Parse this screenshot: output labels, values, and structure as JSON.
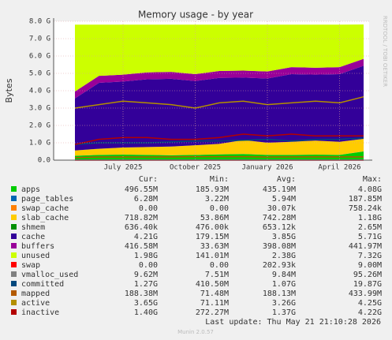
{
  "chart_data": {
    "type": "area",
    "title": "Memory usage - by year",
    "y_label": "Bytes",
    "side_label": "RRDTOOL / TOBI OETIKER",
    "x": [
      "2025-05",
      "2025-06",
      "2025-07",
      "2025-08",
      "2025-09",
      "2025-10",
      "2025-11",
      "2025-12",
      "2026-01",
      "2026-02",
      "2026-03",
      "2026-04",
      "2026-05"
    ],
    "xticks": [
      {
        "value": "2025-07",
        "label": "July 2025"
      },
      {
        "value": "2025-10",
        "label": "October 2025"
      },
      {
        "value": "2026-01",
        "label": "January 2026"
      },
      {
        "value": "2026-04",
        "label": "April 2026"
      }
    ],
    "ylim": [
      0,
      8
    ],
    "yticks": [
      {
        "value": 0,
        "label": "0.0"
      },
      {
        "value": 1,
        "label": "1.0 G"
      },
      {
        "value": 2,
        "label": "2.0 G"
      },
      {
        "value": 3,
        "label": "3.0 G"
      },
      {
        "value": 4,
        "label": "4.0 G"
      },
      {
        "value": 5,
        "label": "5.0 G"
      },
      {
        "value": 6,
        "label": "6.0 G"
      },
      {
        "value": 7,
        "label": "7.0 G"
      },
      {
        "value": 8,
        "label": "8.0 G"
      }
    ],
    "grid": true,
    "series": [
      {
        "name": "apps",
        "color": "#00CC00",
        "draw": "stack",
        "values": [
          0.25,
          0.3,
          0.32,
          0.3,
          0.28,
          0.3,
          0.33,
          0.35,
          0.3,
          0.3,
          0.32,
          0.3,
          0.5
        ]
      },
      {
        "name": "page_tables",
        "color": "#0066B3",
        "draw": "stack",
        "values": [
          0.006,
          0.006,
          0.006,
          0.006,
          0.006,
          0.006,
          0.006,
          0.006,
          0.006,
          0.006,
          0.006,
          0.006,
          0.006
        ]
      },
      {
        "name": "swap_cache",
        "color": "#FF8000",
        "draw": "stack",
        "values": [
          0,
          0,
          0,
          0,
          0,
          0,
          0,
          0,
          0,
          0,
          0,
          0,
          0
        ]
      },
      {
        "name": "slab_cache",
        "color": "#FFCC00",
        "draw": "stack",
        "values": [
          0.3,
          0.35,
          0.4,
          0.45,
          0.5,
          0.55,
          0.6,
          0.8,
          0.7,
          0.75,
          0.8,
          0.75,
          0.72
        ]
      },
      {
        "name": "shmem",
        "color": "#008F00",
        "draw": "stack",
        "values": [
          0.0006,
          0.0006,
          0.0006,
          0.0006,
          0.0006,
          0.0006,
          0.0006,
          0.0006,
          0.0006,
          0.0006,
          0.0006,
          0.0006,
          0.0006
        ]
      },
      {
        "name": "cache",
        "color": "#330099",
        "draw": "stack",
        "values": [
          3.0,
          3.8,
          3.8,
          3.9,
          3.9,
          3.7,
          3.8,
          3.6,
          3.7,
          3.9,
          3.8,
          3.9,
          4.21
        ]
      },
      {
        "name": "buffers",
        "color": "#990099",
        "draw": "stack",
        "values": [
          0.4,
          0.4,
          0.4,
          0.4,
          0.4,
          0.4,
          0.4,
          0.4,
          0.4,
          0.4,
          0.4,
          0.4,
          0.4
        ]
      },
      {
        "name": "unused",
        "color": "#CCFF00",
        "draw": "stack",
        "values": [
          3.85,
          2.95,
          2.88,
          2.75,
          2.72,
          2.85,
          2.67,
          2.65,
          2.7,
          2.45,
          2.48,
          2.45,
          1.98
        ]
      },
      {
        "name": "swap",
        "color": "#FF0000",
        "draw": "line",
        "values": [
          0,
          0,
          0,
          0,
          0,
          0,
          0,
          0,
          0,
          0,
          0,
          0,
          0
        ]
      },
      {
        "name": "vmalloc_used",
        "color": "#808080",
        "draw": "line",
        "values": [
          0.01,
          0.01,
          0.01,
          0.01,
          0.01,
          0.01,
          0.01,
          0.01,
          0.01,
          0.01,
          0.01,
          0.01,
          0.01
        ]
      },
      {
        "name": "committed",
        "color": "#00487D",
        "draw": "line",
        "values": [
          0.9,
          1.0,
          1.0,
          1.0,
          1.05,
          1.1,
          1.1,
          1.15,
          1.2,
          1.1,
          1.2,
          1.2,
          1.27
        ]
      },
      {
        "name": "mapped",
        "color": "#B35A00",
        "draw": "line",
        "values": [
          0.15,
          0.18,
          0.18,
          0.18,
          0.19,
          0.2,
          0.2,
          0.2,
          0.18,
          0.19,
          0.19,
          0.19,
          0.19
        ]
      },
      {
        "name": "active",
        "color": "#B38F00",
        "draw": "line",
        "values": [
          3.0,
          3.2,
          3.4,
          3.3,
          3.2,
          3.0,
          3.3,
          3.4,
          3.2,
          3.3,
          3.4,
          3.3,
          3.65
        ]
      },
      {
        "name": "inactive",
        "color": "#B30000",
        "draw": "line",
        "values": [
          0.9,
          1.2,
          1.3,
          1.3,
          1.2,
          1.2,
          1.3,
          1.5,
          1.4,
          1.5,
          1.4,
          1.4,
          1.4
        ]
      }
    ]
  },
  "legend_table": {
    "headers": [
      "Cur:",
      "Min:",
      "Avg:",
      "Max:"
    ],
    "rows": [
      [
        "496.55M",
        "185.93M",
        "435.19M",
        "4.08G"
      ],
      [
        "6.28M",
        "3.22M",
        "5.94M",
        "187.85M"
      ],
      [
        "0.00",
        "0.00",
        "30.07k",
        "758.24k"
      ],
      [
        "718.82M",
        "53.86M",
        "742.28M",
        "1.18G"
      ],
      [
        "636.40k",
        "476.00k",
        "653.12k",
        "2.65M"
      ],
      [
        "4.21G",
        "179.15M",
        "3.85G",
        "5.71G"
      ],
      [
        "416.58M",
        "33.63M",
        "398.08M",
        "441.97M"
      ],
      [
        "1.98G",
        "141.01M",
        "2.38G",
        "7.32G"
      ],
      [
        "0.00",
        "0.00",
        "202.93k",
        "9.00M"
      ],
      [
        "9.62M",
        "7.51M",
        "9.84M",
        "95.26M"
      ],
      [
        "1.27G",
        "410.50M",
        "1.07G",
        "19.87G"
      ],
      [
        "188.38M",
        "71.48M",
        "188.13M",
        "433.99M"
      ],
      [
        "3.65G",
        "71.11M",
        "3.26G",
        "4.25G"
      ],
      [
        "1.40G",
        "272.27M",
        "1.37G",
        "4.22G"
      ]
    ]
  },
  "footer": {
    "last_update": "Last update: Thu May 21 21:10:28 2026",
    "version": "Munin 2.0.57"
  }
}
